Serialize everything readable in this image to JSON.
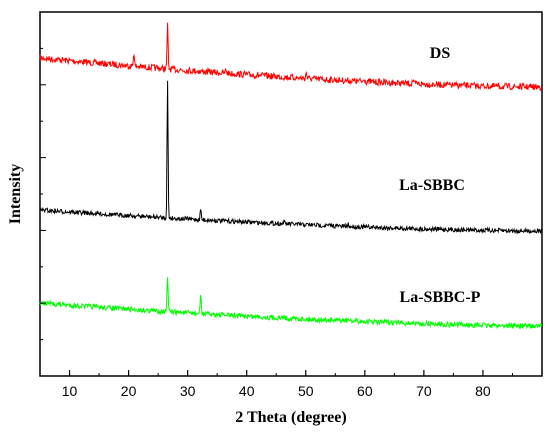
{
  "chart_data": {
    "type": "line",
    "xlabel": "2 Theta (degree)",
    "ylabel": "Intensity",
    "xlim": [
      5,
      90
    ],
    "x_ticks": [
      10,
      20,
      30,
      40,
      50,
      60,
      70,
      80
    ],
    "y_ticks_labeled": false,
    "grid": false,
    "legend": "none (series labeled inline above each trace)",
    "series": [
      {
        "name": "DS",
        "color": "#ff0000",
        "peaks": [
          {
            "x": 20.9,
            "height": 0.18
          },
          {
            "x": 26.6,
            "height": 0.55
          },
          {
            "x": 36.5,
            "height": 0.05
          },
          {
            "x": 50.1,
            "height": 0.08
          },
          {
            "x": 59.9,
            "height": 0.05
          },
          {
            "x": 68.1,
            "height": 0.04
          }
        ]
      },
      {
        "name": "La-SBBC",
        "color": "#000000",
        "peaks": [
          {
            "x": 26.6,
            "height": 1.7
          },
          {
            "x": 32.2,
            "height": 0.14
          },
          {
            "x": 46.3,
            "height": 0.03
          },
          {
            "x": 57.2,
            "height": 0.03
          }
        ]
      },
      {
        "name": "La-SBBC-P",
        "color": "#00ff00",
        "peaks": [
          {
            "x": 26.6,
            "height": 0.45
          },
          {
            "x": 32.2,
            "height": 0.25
          },
          {
            "x": 46.3,
            "height": 0.03
          },
          {
            "x": 57.2,
            "height": 0.03
          }
        ]
      }
    ]
  }
}
